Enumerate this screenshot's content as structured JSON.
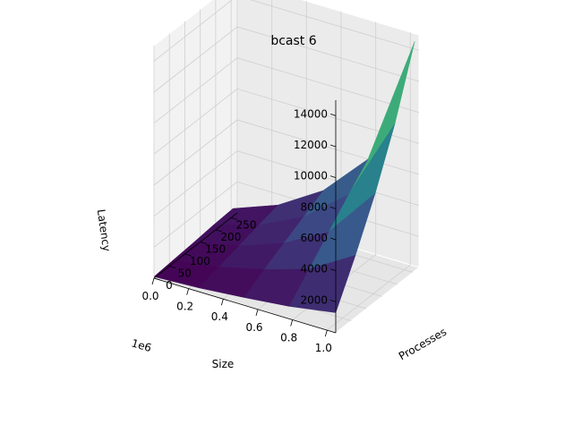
{
  "chart_data": {
    "type": "surface3d",
    "title": "bcast 6",
    "xlabel": "Size",
    "x_offset_label": "1e6",
    "ylabel": "Processes",
    "zlabel": "Latency",
    "x_ticks": [
      "1.0",
      "0.8",
      "0.6",
      "0.4",
      "0.2",
      "0.0"
    ],
    "y_ticks": [
      "0",
      "50",
      "100",
      "150",
      "200",
      "250"
    ],
    "z_ticks": [
      "2000",
      "4000",
      "6000",
      "8000",
      "10000",
      "12000",
      "14000"
    ],
    "x_range": [
      0,
      1.05
    ],
    "y_range": [
      0,
      270
    ],
    "z_range": [
      0,
      15000
    ],
    "colormap": [
      "#440154",
      "#3b528b",
      "#21918c",
      "#5ec962",
      "#fde725"
    ],
    "surface": {
      "sizes_1e6": [
        0.0,
        0.26,
        0.52,
        0.78,
        1.05
      ],
      "processes": [
        0,
        64,
        128,
        192,
        256
      ],
      "latency": [
        [
          100,
          200,
          300,
          420,
          500
        ],
        [
          250,
          600,
          950,
          1300,
          1600
        ],
        [
          500,
          1300,
          2000,
          2700,
          3400
        ],
        [
          800,
          2200,
          3600,
          5000,
          6300
        ],
        [
          1300,
          4000,
          7000,
          10500,
          14800
        ]
      ]
    }
  }
}
